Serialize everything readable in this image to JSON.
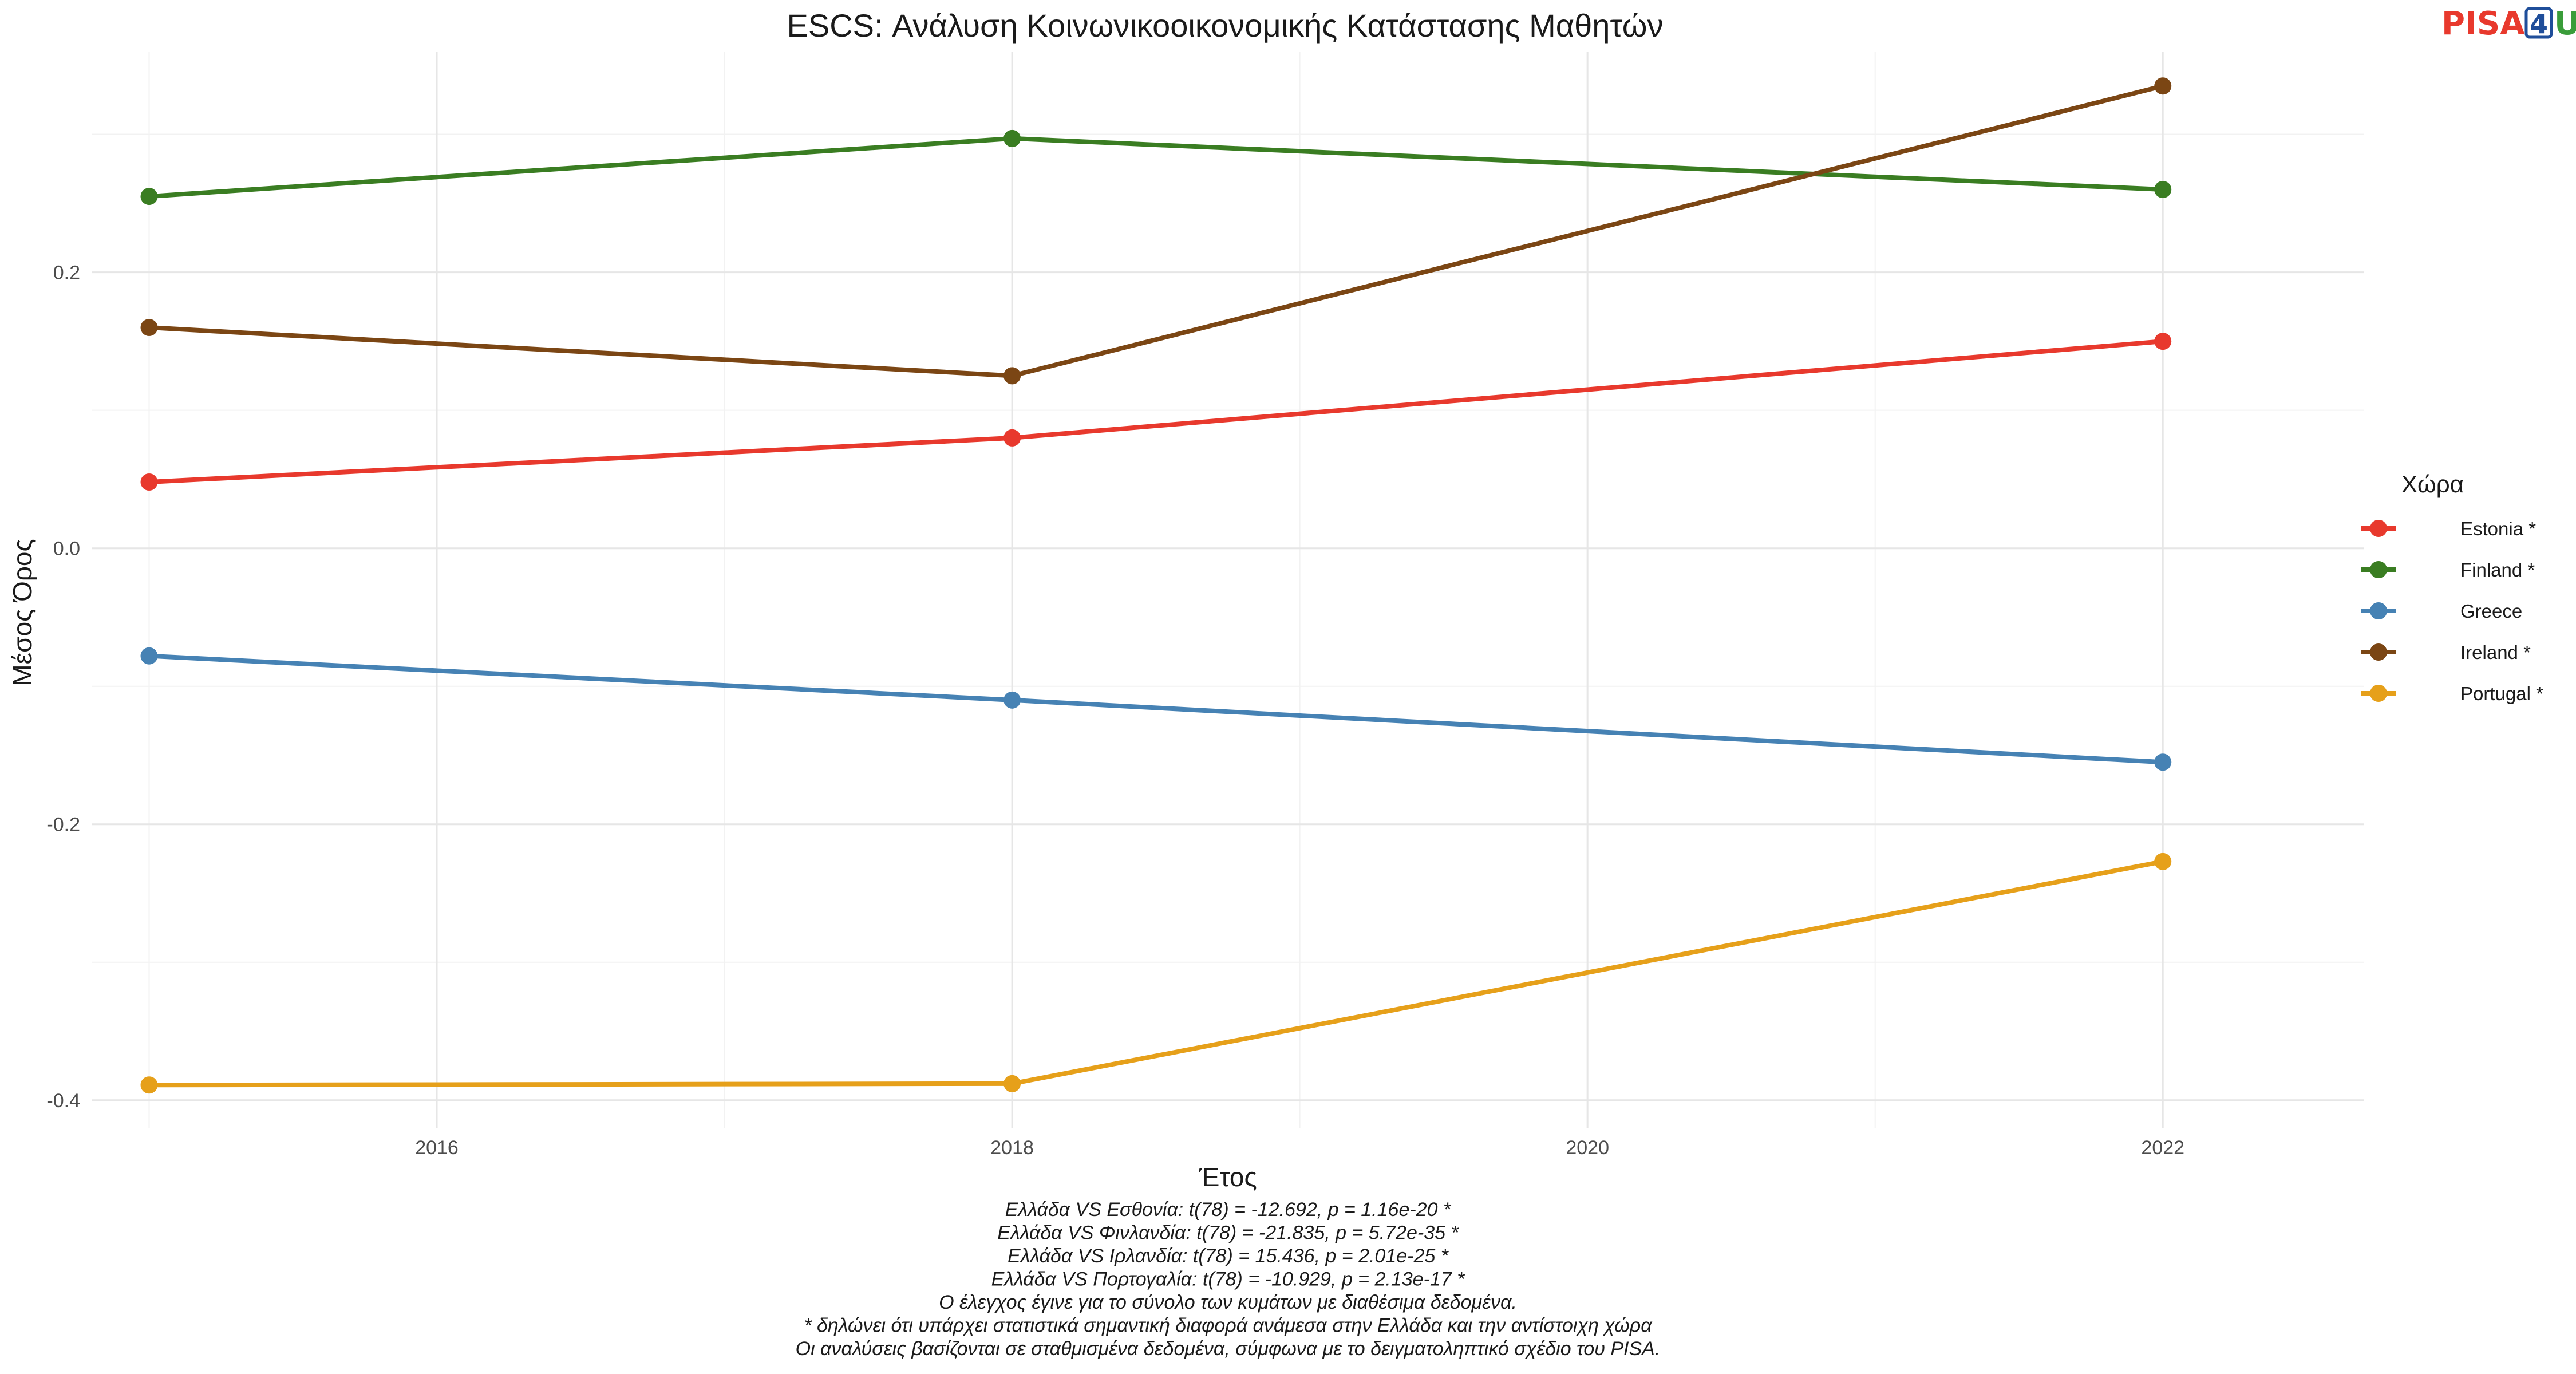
{
  "logo": {
    "prefix": "PISA",
    "digit": "4",
    "suffix": "U"
  },
  "chart_data": {
    "type": "line",
    "title": "ESCS: Ανάλυση Κοινωνικοοικονομικής Κατάστασης Μαθητών",
    "xlabel": "Έτος",
    "ylabel": "Μέσος Όρος",
    "xlim": [
      2014.8,
      2022.7
    ],
    "ylim": [
      -0.42,
      0.36
    ],
    "xticks": [
      2016,
      2018,
      2020,
      2022
    ],
    "yticks": [
      -0.4,
      -0.2,
      0.0,
      0.2
    ],
    "ytick_labels": [
      "-0.4",
      "-0.2",
      "0.0",
      "0.2"
    ],
    "grid": true,
    "legend_title": "Χώρα",
    "legend_position": "right",
    "series": [
      {
        "name": "Estonia *",
        "color": "#e8392d",
        "x": [
          2015,
          2018,
          2022
        ],
        "y": [
          0.048,
          0.08,
          0.15
        ]
      },
      {
        "name": "Finland *",
        "color": "#3a7d22",
        "x": [
          2015,
          2018,
          2022
        ],
        "y": [
          0.255,
          0.297,
          0.26
        ]
      },
      {
        "name": "Greece",
        "color": "#4682b4",
        "x": [
          2015,
          2018,
          2022
        ],
        "y": [
          -0.078,
          -0.11,
          -0.155
        ]
      },
      {
        "name": "Ireland *",
        "color": "#7b4614",
        "x": [
          2015,
          2018,
          2022
        ],
        "y": [
          0.16,
          0.125,
          0.335
        ]
      },
      {
        "name": "Portugal *",
        "color": "#e6a01a",
        "x": [
          2015,
          2018,
          2022
        ],
        "y": [
          -0.389,
          -0.388,
          -0.227
        ]
      }
    ],
    "caption_lines": [
      "Ελλάδα VS Εσθονία: t(78) = -12.692, p = 1.16e-20 *",
      "Ελλάδα VS Φινλανδία: t(78) = -21.835, p = 5.72e-35 *",
      "Ελλάδα VS Ιρλανδία: t(78) = 15.436, p = 2.01e-25 *",
      "Ελλάδα VS Πορτογαλία: t(78) = -10.929, p = 2.13e-17 *",
      "Ο έλεγχος έγινε για το σύνολο των κυμάτων με διαθέσιμα δεδομένα.",
      "* δηλώνει ότι υπάρχει στατιστικά σημαντική διαφορά ανάμεσα στην Ελλάδα και την αντίστοιχη χώρα",
      "Οι αναλύσεις βασίζονται σε σταθμισμένα δεδομένα, σύμφωνα με το δειγματοληπτικό σχέδιο του PISA."
    ]
  }
}
